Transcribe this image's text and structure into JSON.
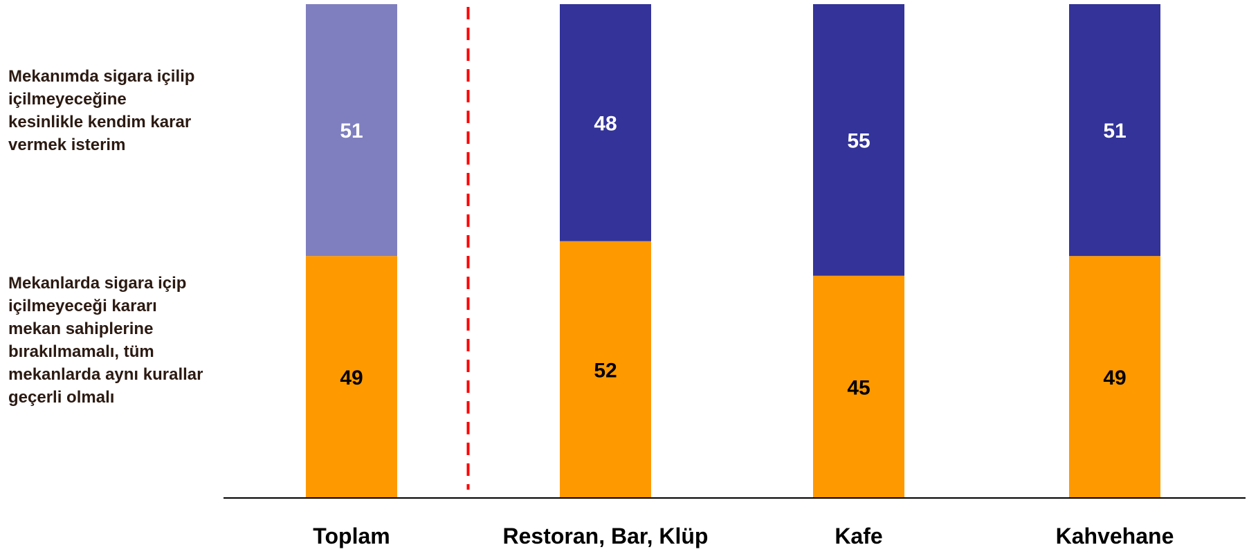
{
  "chart_data": {
    "type": "bar",
    "stacked": true,
    "percent_stacked": true,
    "categories": [
      "Toplam",
      "Restoran, Bar, Klüp",
      "Kafe",
      "Kahvehane"
    ],
    "series": [
      {
        "name": "Mekanlarda sigara içip\niçilmeyeceği kararı\nmekan sahiplerine\nbırakılmamalı, tüm\nmekanlarda aynı kurallar\ngeçerli olmalı",
        "values": [
          49,
          52,
          45,
          49
        ],
        "color": "#ff9900"
      },
      {
        "name": "Mekanımda sigara içilip\niçilmeyeceğine\nkesinlikle kendim karar\nvermek isterim",
        "values": [
          51,
          48,
          55,
          51
        ],
        "color": "#333399",
        "first_color": "#7f7fbf"
      }
    ],
    "ylim": [
      0,
      100
    ],
    "grid": false,
    "legend": "left",
    "divider_after_category": 0,
    "divider_color": "#ff0000"
  }
}
